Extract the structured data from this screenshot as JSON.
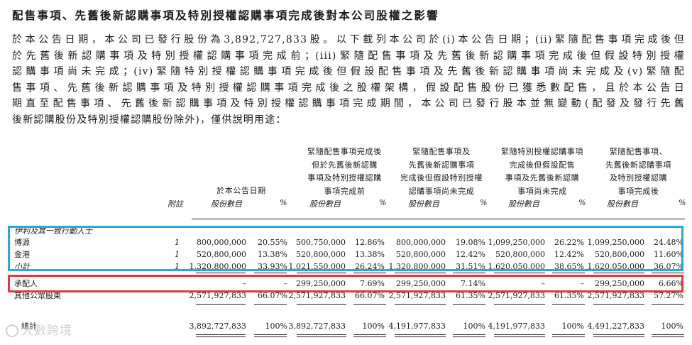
{
  "title": "配售事項、先舊後新認購事項及特別授權認購事項完成後對本公司股權之影響",
  "paragraph_lines": [
    "於本公告日期，本公司已發行股份為3,892,727,833股。以下載列本公司於(i)本公告日期；(ii)緊隨配售事項完成後但",
    "於先舊後新認購事項及特別授權認購事項完成前；(iii)緊隨配售事項及先舊後新認購事項完成後但假設特別授權",
    "認購事項尚未完成；(iv)緊隨特別授權認購事項完成後但假設配售事項及先舊後新認購事項尚未完成及(v)緊隨配",
    "售事項、先舊後新認購事項及特別授權認購事項完成後之股權架構，假設配售股份已獲悉數配售，且於本公告日",
    "期直至配售事項、先舊後新認購事項及特別授權認購事項完成期間，本公司已發行股本並無變動(配發及發行先舊",
    "後新認購股份及特別授權認購股份除外)，僅供說明用途："
  ],
  "table": {
    "column_headers": [
      [
        "於本公告日期"
      ],
      [
        "緊隨配售事項完成後",
        "但於先舊後新認購",
        "事項及特別授權認購",
        "事項完成前"
      ],
      [
        "緊隨配售事項及",
        "先舊後新認購事項",
        "完成後但假設特別授權",
        "認購事項尚未完成"
      ],
      [
        "緊隨特別授權認購事項",
        "完成後但假設配售",
        "事項及先舊後新認購",
        "事項尚未完成"
      ],
      [
        "緊隨配售事項、",
        "先舊後新認購事項",
        "及特別授權認購",
        "事項完成後"
      ]
    ],
    "note_header": "附註",
    "shares_header": "股份數目",
    "pct_header": "%",
    "group_label": "伊利及其一致行動人士",
    "rows": [
      {
        "label": "博源",
        "note": "1",
        "values": [
          "800,000,000",
          "20.55%",
          "500,750,000",
          "12.86%",
          "800,000,000",
          "19.08%",
          "1,099,250,000",
          "26.22%",
          "1,099,250,000",
          "24.48%"
        ]
      },
      {
        "label": "金港",
        "note": "1",
        "values": [
          "520,800,000",
          "13.38%",
          "520,800,000",
          "13.38%",
          "520,800,000",
          "12.42%",
          "520,800,000",
          "12.42%",
          "520,800,000",
          "11.60%"
        ]
      },
      {
        "label": "小計",
        "note": "1",
        "values": [
          "1,320,800,000",
          "33.93%",
          "1,021,550,000",
          "26.24%",
          "1,320,800,000",
          "31.51%",
          "1,620,050,000",
          "38.65%",
          "1,620,050,000",
          "36.07%"
        ]
      },
      {
        "label": "承配人",
        "note": "",
        "values": [
          "–",
          "–",
          "299,250,000",
          "7.69%",
          "299,250,000",
          "7.14%",
          "–",
          "–",
          "299,250,000",
          "6.66%"
        ]
      },
      {
        "label": "其他公眾股東",
        "note": "",
        "values": [
          "2,571,927,833",
          "66.07%",
          "2,571,927,833",
          "66.07%",
          "2,571,927,833",
          "61.35%",
          "2,571,927,833",
          "61.35%",
          "2,571,927,833",
          "57.27%"
        ]
      },
      {
        "label": "總計",
        "note": "",
        "values": [
          "3,892,727,833",
          "100%",
          "3,892,727,833",
          "100%",
          "4,191,977,833",
          "100%",
          "4,191,977,833",
          "100%",
          "4,491,227,833",
          "100%"
        ]
      }
    ]
  },
  "watermark": "大數跨境"
}
